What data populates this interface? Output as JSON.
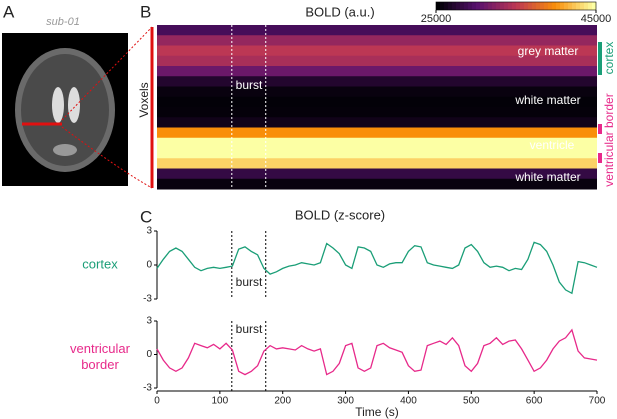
{
  "panel_labels": [
    "A",
    "B",
    "C"
  ],
  "image": {
    "subject": "sub-01"
  },
  "chart_data": [
    {
      "type": "heatmap",
      "title": "BOLD (a.u.)",
      "ylabel": "Voxels",
      "rows": [
        29000,
        33000,
        35000,
        34000,
        31000,
        27000,
        25500,
        25200,
        25300,
        26000,
        40000,
        45000,
        45000,
        43000,
        28000,
        25500
      ],
      "clim": [
        25000,
        45000
      ],
      "cticks": [
        25000,
        45000
      ],
      "annotations": [
        "grey matter",
        "white matter",
        "ventricle",
        "white matter"
      ],
      "regions": [
        {
          "name": "cortex",
          "color": "#1a9e77"
        },
        {
          "name": "ventricular border",
          "color": "#e7298a"
        }
      ],
      "bursts": [
        119,
        173
      ],
      "burst_label": "burst",
      "xlim": [
        0,
        700
      ]
    },
    {
      "type": "line",
      "title": "BOLD (z-score)",
      "name": "cortex",
      "color": "#1a9e77",
      "x": [
        0,
        10,
        20,
        30,
        40,
        50,
        60,
        70,
        80,
        90,
        100,
        110,
        120,
        130,
        140,
        150,
        160,
        170,
        180,
        190,
        200,
        210,
        220,
        230,
        240,
        250,
        260,
        270,
        280,
        290,
        300,
        310,
        320,
        330,
        340,
        350,
        360,
        370,
        380,
        390,
        400,
        410,
        420,
        430,
        440,
        450,
        460,
        470,
        480,
        490,
        500,
        510,
        520,
        530,
        540,
        550,
        560,
        570,
        580,
        590,
        600,
        610,
        620,
        630,
        640,
        650,
        660,
        670,
        680,
        690,
        700
      ],
      "values": [
        -0.3,
        0.5,
        1.2,
        1.5,
        1.2,
        0.5,
        -0.2,
        -0.5,
        -0.3,
        -0.2,
        -0.3,
        -0.2,
        -0.1,
        1.4,
        1.6,
        1.2,
        0.9,
        -0.3,
        -0.8,
        -0.6,
        -0.3,
        -0.1,
        0.0,
        0.2,
        0.1,
        0.0,
        0.2,
        1.9,
        1.5,
        1.0,
        0.0,
        -0.3,
        1.6,
        1.5,
        1.2,
        0.0,
        -0.2,
        0.1,
        0.2,
        0.2,
        1.2,
        1.7,
        1.6,
        0.2,
        0.0,
        -0.1,
        -0.2,
        -0.3,
        0.0,
        1.5,
        1.8,
        1.2,
        0.2,
        -0.2,
        -0.1,
        -0.2,
        -0.5,
        -0.3,
        -0.4,
        0.5,
        2.0,
        1.8,
        1.2,
        0.0,
        -1.5,
        -2.2,
        -2.5,
        0.3,
        0.2,
        0.0,
        -0.2
      ],
      "xlim": [
        0,
        700
      ],
      "ylim": [
        -3,
        3
      ],
      "yticks": [
        -3,
        0,
        3
      ],
      "burst_label": "burst"
    },
    {
      "type": "line",
      "name": "ventricular border",
      "color": "#e7298a",
      "x": [
        0,
        10,
        20,
        30,
        40,
        50,
        60,
        70,
        80,
        90,
        100,
        110,
        120,
        130,
        140,
        150,
        160,
        170,
        180,
        190,
        200,
        210,
        220,
        230,
        240,
        250,
        260,
        270,
        280,
        290,
        300,
        310,
        320,
        330,
        340,
        350,
        360,
        370,
        380,
        390,
        400,
        410,
        420,
        430,
        440,
        450,
        460,
        470,
        480,
        490,
        500,
        510,
        520,
        530,
        540,
        550,
        560,
        570,
        580,
        590,
        600,
        610,
        620,
        630,
        640,
        650,
        660,
        670,
        680,
        690,
        700
      ],
      "values": [
        0.5,
        -0.5,
        -1.2,
        -1.5,
        -1.2,
        -0.3,
        1.0,
        0.8,
        0.6,
        0.9,
        0.5,
        1.0,
        0.4,
        -1.5,
        -1.8,
        -1.5,
        -1.0,
        0.3,
        0.8,
        0.5,
        0.6,
        0.5,
        0.4,
        0.8,
        0.5,
        0.3,
        0.5,
        -1.8,
        -1.5,
        -0.8,
        0.8,
        1.0,
        -1.2,
        -1.5,
        -1.2,
        0.8,
        1.0,
        0.6,
        0.4,
        0.2,
        -1.0,
        -1.5,
        -1.4,
        0.8,
        1.0,
        1.2,
        0.9,
        1.5,
        0.8,
        -1.0,
        -1.5,
        -0.8,
        0.8,
        1.0,
        1.5,
        0.9,
        1.2,
        1.3,
        0.5,
        -0.5,
        -1.5,
        -1.2,
        -0.5,
        0.5,
        1.2,
        1.5,
        2.2,
        0.3,
        -0.3,
        -0.4,
        -0.5
      ],
      "xlim": [
        0,
        700
      ],
      "ylim": [
        -3,
        3
      ],
      "yticks": [
        -3,
        0,
        3
      ],
      "xticks": [
        0,
        100,
        200,
        300,
        400,
        500,
        600,
        700
      ],
      "xlabel": "Time (s)",
      "burst_label": "burst"
    }
  ]
}
